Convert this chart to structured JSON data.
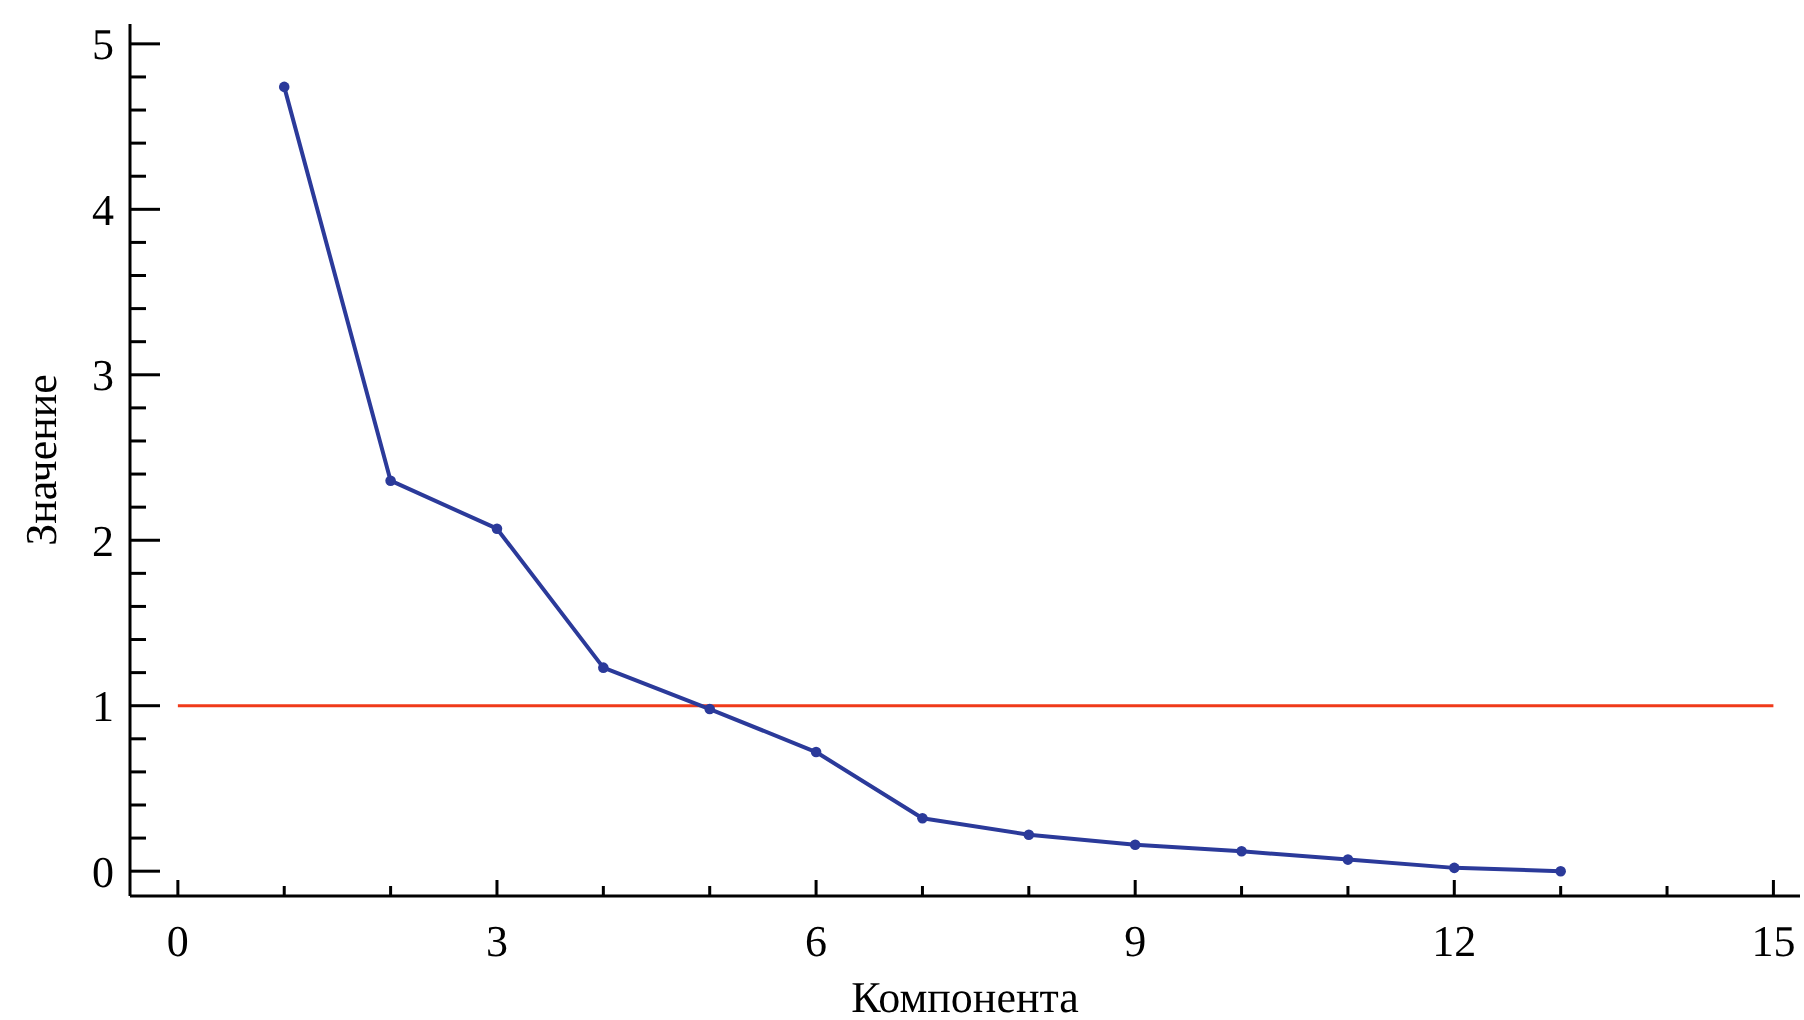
{
  "chart_data": {
    "type": "line",
    "xlabel": "Компонента",
    "ylabel": "Значение",
    "x": [
      1,
      2,
      3,
      4,
      5,
      6,
      7,
      8,
      9,
      10,
      11,
      12,
      13
    ],
    "series": [
      {
        "color": "#2b3a9a",
        "values": [
          4.74,
          2.36,
          2.07,
          1.23,
          0.98,
          0.72,
          0.32,
          0.22,
          0.16,
          0.12,
          0.07,
          0.02,
          0.0
        ]
      }
    ],
    "xlim": [
      -0.45,
      15.25
    ],
    "ylim": [
      -0.15,
      5.12
    ],
    "xticks": [
      0,
      {
        "value": 1,
        "label": null
      },
      {
        "value": 2,
        "label": null
      },
      3,
      {
        "value": 4,
        "label": null
      },
      {
        "value": 5,
        "label": null
      },
      6,
      {
        "value": 7,
        "label": null
      },
      {
        "value": 8,
        "label": null
      },
      9,
      {
        "value": 10,
        "label": null
      },
      {
        "value": 11,
        "label": null
      },
      12,
      {
        "value": 13,
        "label": null
      },
      {
        "value": 14,
        "label": null
      },
      15
    ],
    "yticks": [
      0,
      {
        "value": 0.2,
        "label": null
      },
      {
        "value": 0.4,
        "label": null
      },
      {
        "value": 0.6,
        "label": null
      },
      {
        "value": 0.8,
        "label": null
      },
      1,
      {
        "value": 1.2,
        "label": null
      },
      {
        "value": 1.4,
        "label": null
      },
      {
        "value": 1.6,
        "label": null
      },
      {
        "value": 1.8,
        "label": null
      },
      2,
      {
        "value": 2.2,
        "label": null
      },
      {
        "value": 2.4,
        "label": null
      },
      {
        "value": 2.6,
        "label": null
      },
      {
        "value": 2.8,
        "label": null
      },
      3,
      {
        "value": 3.2,
        "label": null
      },
      {
        "value": 3.4,
        "label": null
      },
      {
        "value": 3.6,
        "label": null
      },
      {
        "value": 3.8,
        "label": null
      },
      4,
      {
        "value": 4.2,
        "label": null
      },
      {
        "value": 4.4,
        "label": null
      },
      {
        "value": 4.6,
        "label": null
      },
      {
        "value": 4.8,
        "label": null
      },
      5
    ],
    "ref_lines": [
      {
        "axis": "y",
        "value": 1,
        "color": "#f03a1a"
      }
    ],
    "marker": "circle",
    "grid": false
  }
}
